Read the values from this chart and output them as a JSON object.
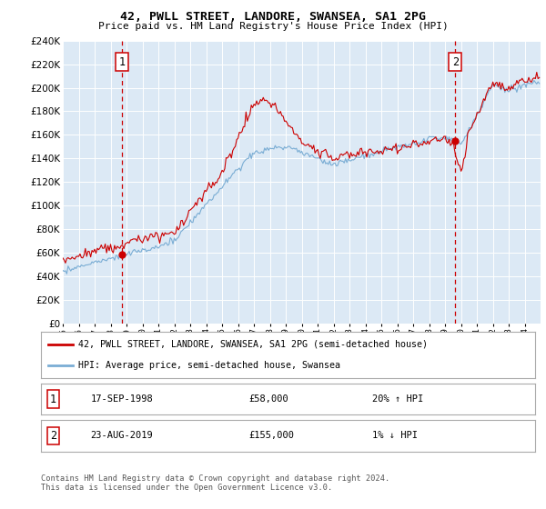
{
  "title": "42, PWLL STREET, LANDORE, SWANSEA, SA1 2PG",
  "subtitle": "Price paid vs. HM Land Registry's House Price Index (HPI)",
  "background_color": "#dce9f5",
  "plot_bg_color": "#dce9f5",
  "hpi_color": "#7aadd4",
  "price_color": "#cc0000",
  "marker_color": "#cc0000",
  "annotation_box_color": "#cc0000",
  "ylim": [
    0,
    240000
  ],
  "ytick_step": 20000,
  "legend_line1": "42, PWLL STREET, LANDORE, SWANSEA, SA1 2PG (semi-detached house)",
  "legend_line2": "HPI: Average price, semi-detached house, Swansea",
  "sale1_label": "1",
  "sale1_date": "17-SEP-1998",
  "sale1_price": "£58,000",
  "sale1_hpi": "20% ↑ HPI",
  "sale1_year": 1998.71,
  "sale1_value": 58000,
  "sale2_label": "2",
  "sale2_date": "23-AUG-2019",
  "sale2_price": "£155,000",
  "sale2_hpi": "1% ↓ HPI",
  "sale2_year": 2019.64,
  "sale2_value": 155000,
  "footer": "Contains HM Land Registry data © Crown copyright and database right 2024.\nThis data is licensed under the Open Government Licence v3.0."
}
